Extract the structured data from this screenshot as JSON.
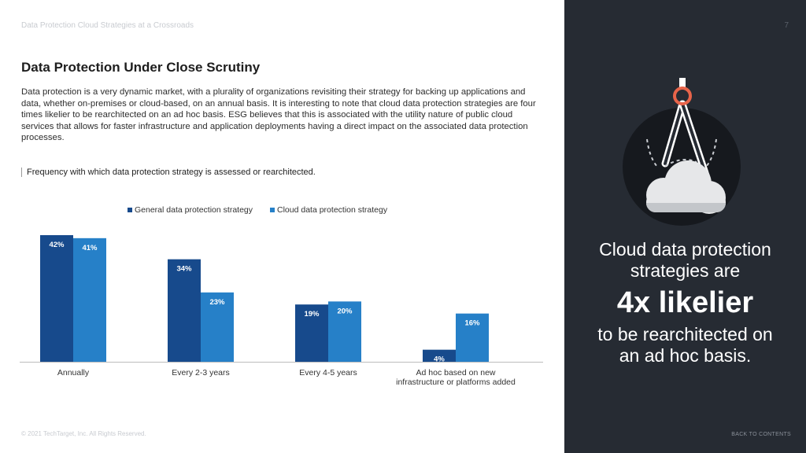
{
  "header": {
    "doc_title": "Data Protection Cloud Strategies at a Crossroads",
    "page_number": "7"
  },
  "section": {
    "title": "Data Protection Under Close Scrutiny",
    "body": "Data protection is a very dynamic market, with a plurality of organizations revisiting their strategy for backing up applications and data, whether on-premises or cloud-based, on an annual basis. It is interesting to note that cloud data protection strategies are four times likelier to be rearchitected on an ad hoc basis. ESG believes that this is associated with the utility nature of public cloud services that allows for faster infrastructure and application deployments having a direct impact on the associated data protection processes."
  },
  "chart_data": {
    "type": "bar",
    "title": "Frequency with which data protection strategy is assessed or rearchitected.",
    "categories": [
      "Annually",
      "Every 2-3 years",
      "Every 4-5 years",
      "Ad hoc based on new infrastructure or platforms added"
    ],
    "category_lines": [
      [
        "Annually"
      ],
      [
        "Every 2-3 years"
      ],
      [
        "Every 4-5 years"
      ],
      [
        "Ad hoc based on new",
        "infrastructure or platforms added"
      ]
    ],
    "series": [
      {
        "name": "General data protection strategy",
        "values": [
          42,
          34,
          19,
          4
        ],
        "labels": [
          "42%",
          "34%",
          "19%",
          "4%"
        ],
        "color": "#174a8c"
      },
      {
        "name": "Cloud data protection strategy",
        "values": [
          41,
          23,
          20,
          16
        ],
        "labels": [
          "41%",
          "23%",
          "20%",
          "16%"
        ],
        "color": "#2680c8"
      }
    ],
    "ylim": [
      0,
      42
    ],
    "grid": false,
    "legend_position": "top"
  },
  "callout": {
    "line1": "Cloud data protection",
    "line2": "strategies are",
    "highlight": "4x likelier",
    "line3": "to be rearchitected on",
    "line4": "an ad hoc basis."
  },
  "illustration": {
    "icons": [
      "compass-icon",
      "cloud-icon"
    ],
    "ring_color": "#e8644a"
  },
  "footer": {
    "copyright": "© 2021 TechTarget, Inc. All Rights Reserved.",
    "back_link": "BACK TO CONTENTS"
  }
}
